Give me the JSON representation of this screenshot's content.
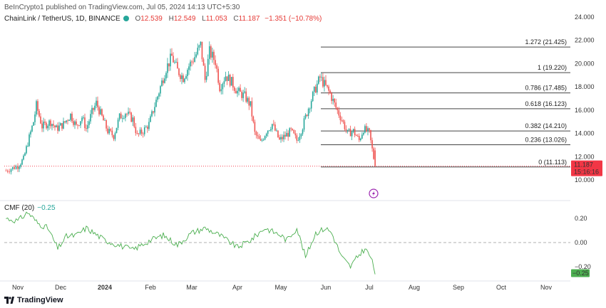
{
  "header": {
    "credit": "BeInCrypto1 published on TradingView.com, Jul 05, 2024 14:13 UTC+5:30",
    "symbol": "ChainLink / TetherUS, 1D, BINANCE",
    "open_label": "O",
    "open": "12.539",
    "high_label": "H",
    "high": "12.549",
    "low_label": "L",
    "low": "11.053",
    "close_label": "C",
    "close": "11.187",
    "change": "−1.351 (−10.78%)"
  },
  "indicator": {
    "name": "CMF (20)",
    "value": "−0.25",
    "badge": "−0.25"
  },
  "price_badge": {
    "price": "11.187",
    "countdown": "15:16:16"
  },
  "footer": {
    "brand": "TradingView"
  },
  "colors": {
    "up": "#26a69a",
    "down": "#ef5350",
    "badge_red": "#f23645",
    "cmf": "#4caf50",
    "fib": "#555555"
  },
  "chart_data": [
    {
      "type": "candlestick",
      "title": "ChainLink / TetherUS, 1D, BINANCE",
      "x_ticks": [
        "Nov",
        "Dec",
        "2024",
        "Feb",
        "Mar",
        "Apr",
        "May",
        "Jun",
        "Jul",
        "Aug",
        "Sep",
        "Oct",
        "Nov"
      ],
      "y_ticks": [
        "24.000",
        "22.000",
        "20.000",
        "18.000",
        "16.000",
        "14.000",
        "12.000",
        "10.000"
      ],
      "ylim": [
        9.2,
        24.4
      ],
      "last_price": 11.187,
      "close_path": [
        [
          "2023-10-25",
          10.8
        ],
        [
          "2023-11-01",
          11.2
        ],
        [
          "2023-11-05",
          11.8
        ],
        [
          "2023-11-08",
          13.2
        ],
        [
          "2023-11-12",
          15.0
        ],
        [
          "2023-11-14",
          16.4
        ],
        [
          "2023-11-18",
          14.6
        ],
        [
          "2023-11-24",
          15.0
        ],
        [
          "2023-11-28",
          14.4
        ],
        [
          "2023-12-03",
          14.8
        ],
        [
          "2023-12-08",
          15.6
        ],
        [
          "2023-12-12",
          14.6
        ],
        [
          "2023-12-16",
          15.4
        ],
        [
          "2023-12-19",
          14.4
        ],
        [
          "2023-12-23",
          15.8
        ],
        [
          "2023-12-26",
          16.6
        ],
        [
          "2023-12-30",
          15.4
        ],
        [
          "2024-01-03",
          14.2
        ],
        [
          "2024-01-07",
          13.8
        ],
        [
          "2024-01-11",
          15.4
        ],
        [
          "2024-01-15",
          15.8
        ],
        [
          "2024-01-20",
          15.2
        ],
        [
          "2024-01-23",
          13.8
        ],
        [
          "2024-01-27",
          14.2
        ],
        [
          "2024-01-31",
          14.8
        ],
        [
          "2024-02-04",
          16.4
        ],
        [
          "2024-02-08",
          18.0
        ],
        [
          "2024-02-12",
          19.6
        ],
        [
          "2024-02-16",
          20.6
        ],
        [
          "2024-02-20",
          19.4
        ],
        [
          "2024-02-24",
          18.8
        ],
        [
          "2024-02-28",
          19.8
        ],
        [
          "2024-03-04",
          20.8
        ],
        [
          "2024-03-07",
          21.6
        ],
        [
          "2024-03-10",
          18.6
        ],
        [
          "2024-03-13",
          21.0
        ],
        [
          "2024-03-17",
          20.2
        ],
        [
          "2024-03-20",
          18.0
        ],
        [
          "2024-03-24",
          19.0
        ],
        [
          "2024-03-28",
          18.4
        ],
        [
          "2024-04-01",
          17.6
        ],
        [
          "2024-04-06",
          17.2
        ],
        [
          "2024-04-10",
          16.4
        ],
        [
          "2024-04-13",
          14.0
        ],
        [
          "2024-04-17",
          13.2
        ],
        [
          "2024-04-21",
          14.2
        ],
        [
          "2024-04-25",
          14.8
        ],
        [
          "2024-04-30",
          13.4
        ],
        [
          "2024-05-04",
          13.8
        ],
        [
          "2024-05-08",
          14.2
        ],
        [
          "2024-05-12",
          13.4
        ],
        [
          "2024-05-16",
          14.6
        ],
        [
          "2024-05-20",
          16.2
        ],
        [
          "2024-05-24",
          17.6
        ],
        [
          "2024-05-28",
          18.8
        ],
        [
          "2024-06-01",
          18.0
        ],
        [
          "2024-06-04",
          17.4
        ],
        [
          "2024-06-08",
          16.2
        ],
        [
          "2024-06-12",
          15.2
        ],
        [
          "2024-06-16",
          14.0
        ],
        [
          "2024-06-20",
          14.2
        ],
        [
          "2024-06-24",
          13.4
        ],
        [
          "2024-06-27",
          14.4
        ],
        [
          "2024-07-01",
          14.0
        ],
        [
          "2024-07-03",
          12.6
        ],
        [
          "2024-07-05",
          11.187
        ]
      ],
      "fib_levels": [
        {
          "label": "1.272 (21.425)",
          "value": 21.425
        },
        {
          "label": "1 (19.220)",
          "value": 19.22
        },
        {
          "label": "0.786 (17.485)",
          "value": 17.485
        },
        {
          "label": "0.618 (16.123)",
          "value": 16.123
        },
        {
          "label": "0.382 (14.210)",
          "value": 14.21
        },
        {
          "label": "0.236 (13.026)",
          "value": 13.026
        },
        {
          "label": "0 (11.113)",
          "value": 11.113
        }
      ]
    },
    {
      "type": "line",
      "title": "CMF (20)",
      "y_ticks": [
        "0.20",
        "0.00",
        "−0.20"
      ],
      "ylim": [
        -0.27,
        0.27
      ],
      "zero_line": "dashed",
      "series": [
        {
          "values_path": [
            [
              "2023-10-25",
              0.2
            ],
            [
              "2023-11-01",
              0.18
            ],
            [
              "2023-11-08",
              0.25
            ],
            [
              "2023-11-15",
              0.16
            ],
            [
              "2023-11-22",
              0.12
            ],
            [
              "2023-11-29",
              -0.05
            ],
            [
              "2023-12-05",
              0.05
            ],
            [
              "2023-12-12",
              0.06
            ],
            [
              "2023-12-19",
              0.12
            ],
            [
              "2024-01-01",
              0.02
            ],
            [
              "2024-01-10",
              -0.02
            ],
            [
              "2024-01-20",
              -0.06
            ],
            [
              "2024-02-01",
              0.02
            ],
            [
              "2024-02-10",
              0.06
            ],
            [
              "2024-02-20",
              -0.02
            ],
            [
              "2024-03-01",
              0.08
            ],
            [
              "2024-03-10",
              0.12
            ],
            [
              "2024-03-20",
              0.06
            ],
            [
              "2024-04-01",
              -0.04
            ],
            [
              "2024-04-10",
              0.02
            ],
            [
              "2024-04-20",
              0.12
            ],
            [
              "2024-05-01",
              0.06
            ],
            [
              "2024-05-05",
              0.02
            ],
            [
              "2024-05-12",
              0.12
            ],
            [
              "2024-05-18",
              -0.12
            ],
            [
              "2024-05-25",
              0.08
            ],
            [
              "2024-06-01",
              0.12
            ],
            [
              "2024-06-05",
              0.08
            ],
            [
              "2024-06-12",
              -0.12
            ],
            [
              "2024-06-18",
              -0.2
            ],
            [
              "2024-06-24",
              -0.1
            ],
            [
              "2024-06-28",
              -0.05
            ],
            [
              "2024-07-02",
              -0.12
            ],
            [
              "2024-07-05",
              -0.25
            ]
          ]
        }
      ]
    }
  ]
}
